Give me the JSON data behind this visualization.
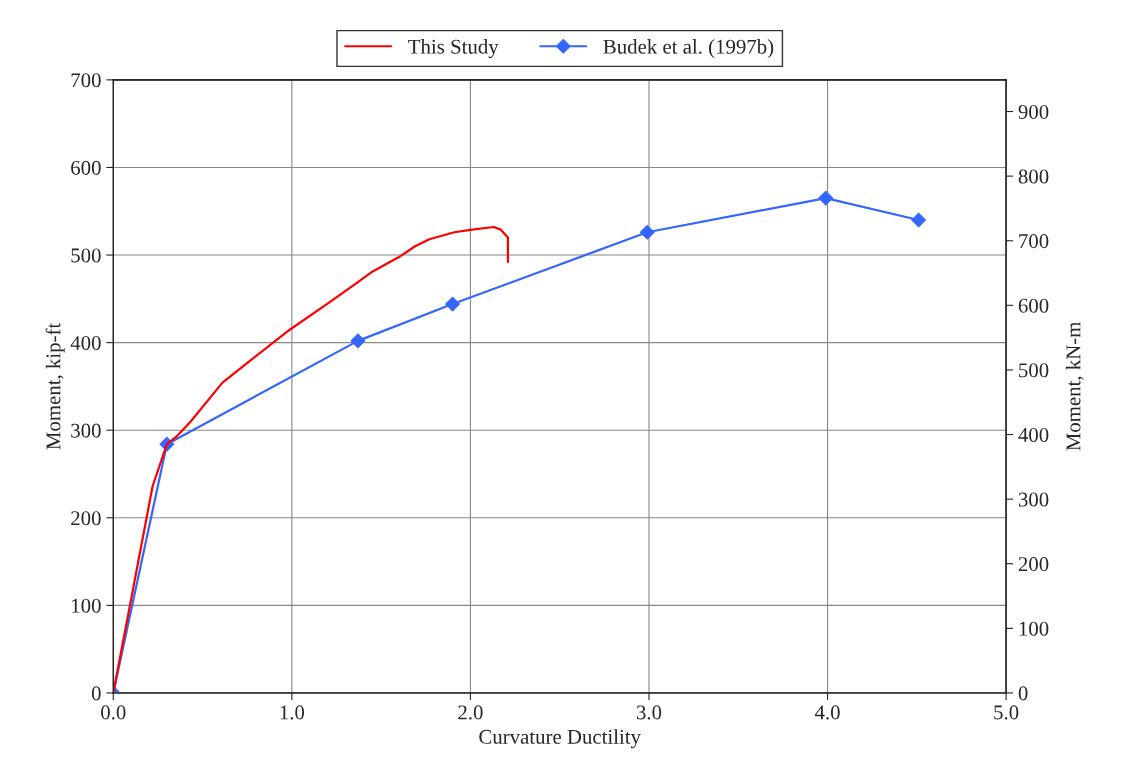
{
  "chart_data": {
    "type": "line",
    "xlabel": "Curvature Ductility",
    "ylabel": "Moment, kip-ft",
    "y2label": "Moment, kN-m",
    "xlim": [
      0,
      5
    ],
    "xticks": [
      {
        "value": 0,
        "label": "0.0"
      },
      {
        "value": 1,
        "label": "1.0"
      },
      {
        "value": 2,
        "label": "2.0"
      },
      {
        "value": 3,
        "label": "3.0"
      },
      {
        "value": 4,
        "label": "4.0"
      },
      {
        "value": 5,
        "label": "5.0"
      }
    ],
    "ylim": [
      0,
      700
    ],
    "yticks": [
      0,
      100,
      200,
      300,
      400,
      500,
      600,
      700
    ],
    "y2lim": [
      0,
      949
    ],
    "y2ticks": [
      0,
      100,
      200,
      300,
      400,
      500,
      600,
      700,
      800,
      900
    ],
    "grid": true,
    "legend": "top",
    "series": [
      {
        "name": "This Study",
        "color": "#ff0000",
        "marker": "none",
        "x": [
          0,
          0.22,
          0.3,
          0.35,
          0.43,
          0.61,
          0.77,
          0.99,
          1.21,
          1.37,
          1.45,
          1.61,
          1.69,
          1.77,
          1.91,
          2.01,
          2.13,
          2.17,
          2.21,
          2.21
        ],
        "values": [
          0,
          236,
          284,
          292,
          309,
          354,
          380,
          415,
          446,
          469,
          481,
          499,
          510,
          518,
          526,
          529,
          532,
          529,
          520,
          492
        ]
      },
      {
        "name": "Budek et al. (1997b)",
        "color": "#3366ff",
        "marker": "diamond",
        "x": [
          0,
          0.3,
          1.37,
          1.9,
          2.99,
          3.99,
          4.51
        ],
        "values": [
          0,
          284,
          402,
          444,
          526,
          565,
          540
        ]
      }
    ]
  }
}
